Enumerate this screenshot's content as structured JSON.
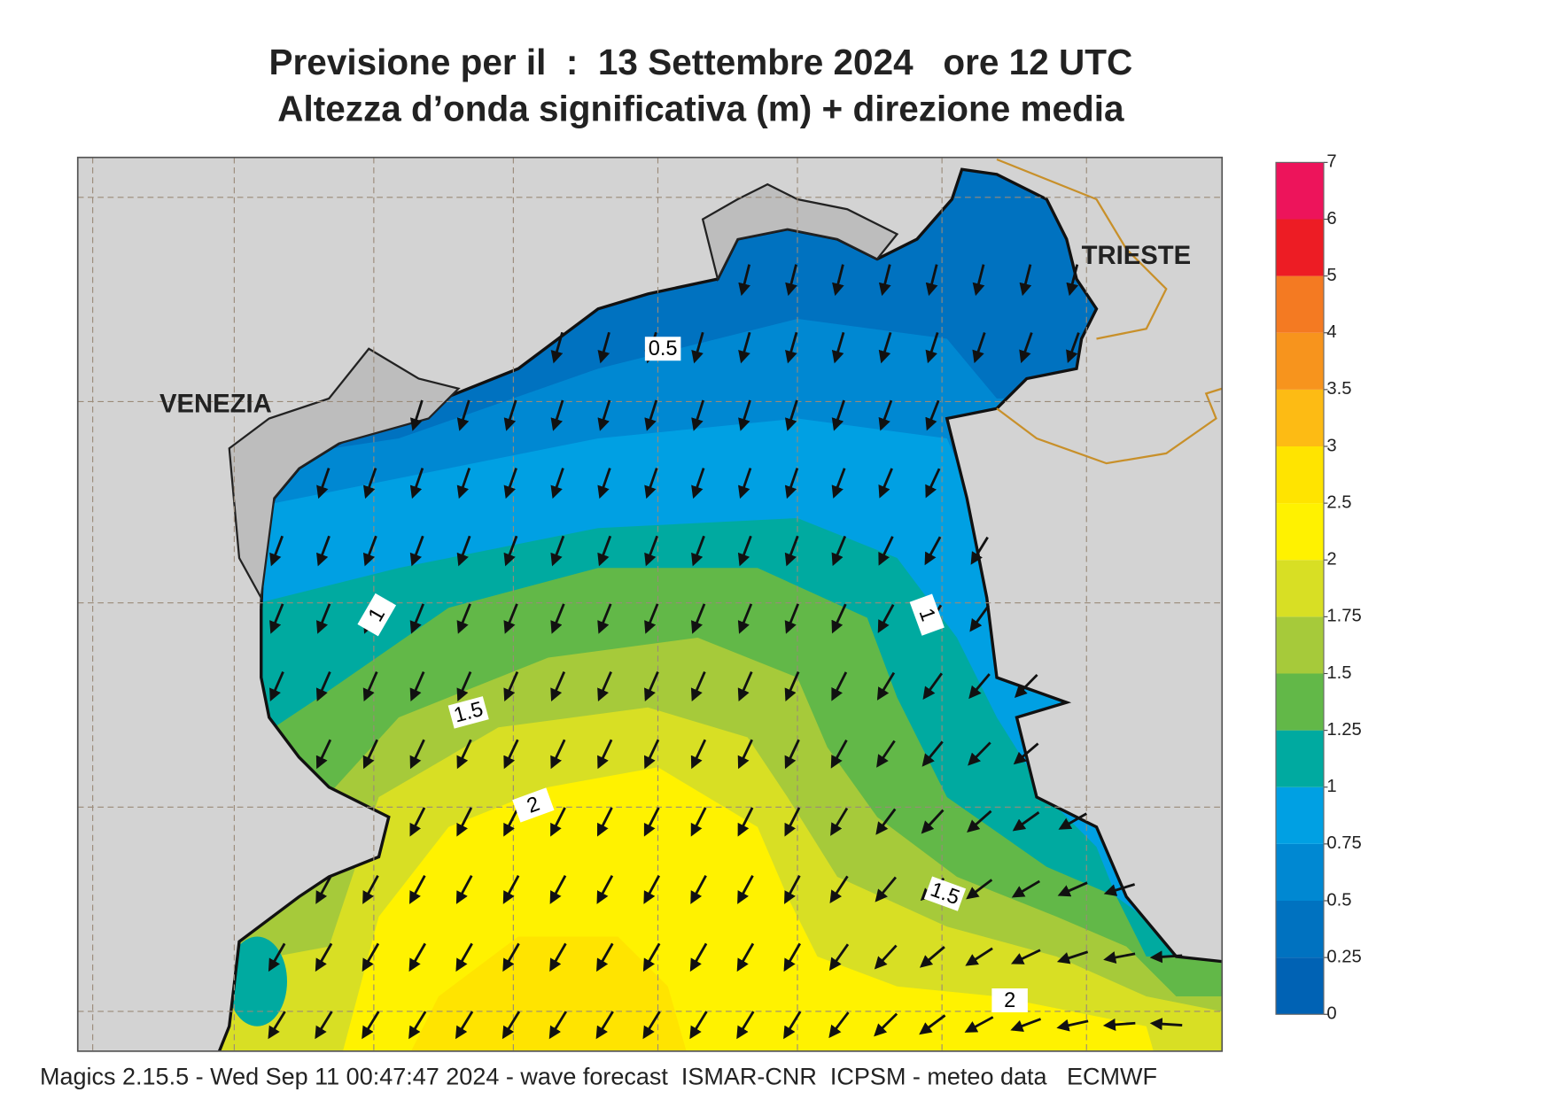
{
  "header": {
    "title_line1": "Previsione per il  :  13 Settembre 2024   ore 12 UTC",
    "title_line2": "Altezza d’onda significativa (m) + direzione media"
  },
  "map": {
    "places": [
      "VENEZIA",
      "TRIESTE"
    ],
    "contour_labels": [
      "0.5",
      "1",
      "1",
      "1.5",
      "2",
      "1.5",
      "2"
    ]
  },
  "colorbar": {
    "levels": [
      0,
      0.25,
      0.5,
      0.75,
      1,
      1.25,
      1.5,
      1.75,
      2,
      2.5,
      3,
      3.5,
      4,
      5,
      6,
      7
    ],
    "colors": [
      "#0062b4",
      "#0072c0",
      "#0088d2",
      "#00a0e3",
      "#00aaa0",
      "#62b848",
      "#a6ca3a",
      "#d8df24",
      "#fff200",
      "#ffe400",
      "#fdbb14",
      "#f7941d",
      "#f47a22",
      "#ed1c24",
      "#ed145b"
    ]
  },
  "footer": "Magics 2.15.5 - Wed Sep 11 00:47:47 2024 - wave forecast  ISMAR-CNR  ICPSM - meteo data   ECMWF"
}
